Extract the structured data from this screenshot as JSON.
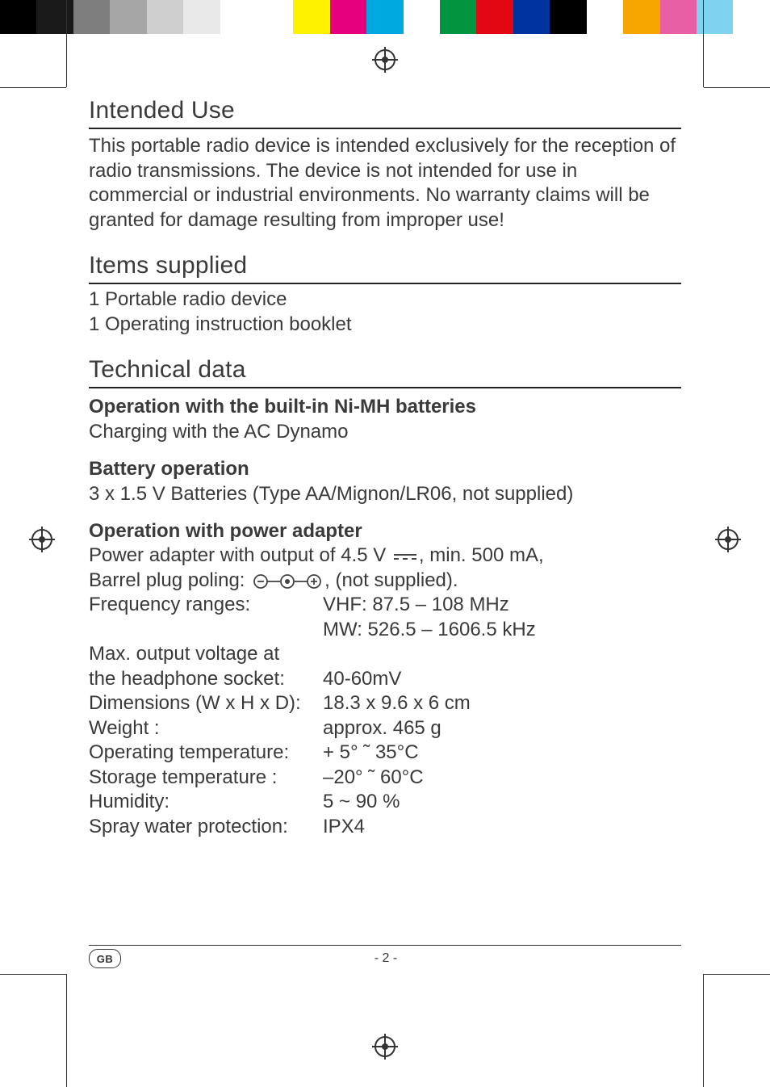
{
  "colorbar": [
    "#000000",
    "#1a1a1a",
    "#7e7e7e",
    "#a6a6a6",
    "#cfcfcf",
    "#e9e9e9",
    "#ffffff",
    "#ffffff",
    "#fff200",
    "#e6007e",
    "#00a9e0",
    "#ffffff",
    "#009640",
    "#e30613",
    "#0033a0",
    "#000000",
    "#ffffff",
    "#f7a600",
    "#e85fa6",
    "#7fd3f0",
    "#ffffff"
  ],
  "sections": {
    "intended_use": {
      "title": "Intended Use",
      "body": "This portable radio device is intended exclusively for the reception of radio transmissions. The device is not intended for use in commercial or industrial environments. No warranty claims will be granted for damage resulting from improper use!"
    },
    "items_supplied": {
      "title": "Items supplied",
      "lines": [
        "1 Portable radio device",
        "1 Operating instruction booklet"
      ]
    },
    "technical_data": {
      "title": "Technical data",
      "nimh": {
        "heading": "Operation with the built-in Ni-MH batteries",
        "sub": "Charging with the AC Dynamo"
      },
      "battery": {
        "heading": "Battery operation",
        "sub": "3 x 1.5 V Batteries (Type AA/Mignon/LR06, not supplied)"
      },
      "adapter": {
        "heading": "Operation with power adapter",
        "line1_a": "Power adapter with output of  4.5 V",
        "line1_b": ", min. 500 mA,",
        "line2_a": "Barrel plug poling:",
        "line2_b": ", (not supplied).",
        "rows": [
          {
            "label": "Frequency ranges:",
            "val": "VHF:  87.5 – 108 MHz"
          },
          {
            "label": "",
            "val": "MW: 526.5 – 1606.5 kHz"
          },
          {
            "label": "Max. output voltage at",
            "val": ""
          },
          {
            "label": "the headphone socket:",
            "val": "40-60mV"
          },
          {
            "label": "Dimensions (W x H x D):",
            "val": "18.3 x 9.6 x 6 cm"
          },
          {
            "label": "Weight :",
            "val": "approx. 465 g"
          },
          {
            "label": "Operating temperature:",
            "val": "+  5° ˜ 35°C"
          },
          {
            "label": "Storage temperature :",
            "val": "–20° ˜ 60°C"
          },
          {
            "label": "Humidity:",
            "val": "5 ~ 90 %"
          },
          {
            "label": "Spray water protection:",
            "val": "IPX4"
          }
        ]
      }
    }
  },
  "footer": {
    "lang": "GB",
    "page": "- 2 -"
  }
}
